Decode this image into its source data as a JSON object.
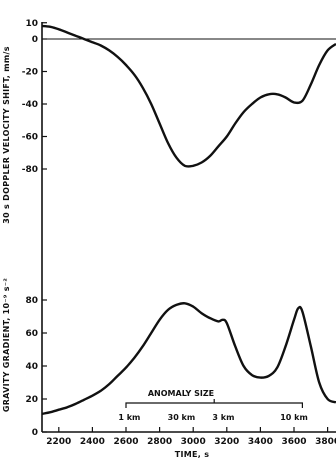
{
  "chart_data": [
    {
      "type": "line",
      "ylabel": "30 s DOPPLER VELOCITY SHIFT, mm/s",
      "ylim": [
        -100,
        10
      ],
      "xlim": [
        2100,
        3850
      ],
      "yticks": [
        10,
        0,
        -20,
        -40,
        -60,
        -80
      ],
      "zero_line": true,
      "grid": false,
      "series": [
        {
          "x": [
            2100,
            2150,
            2200,
            2250,
            2300,
            2350,
            2400,
            2450,
            2500,
            2550,
            2600,
            2650,
            2700,
            2750,
            2800,
            2850,
            2900,
            2950,
            3000,
            3050,
            3100,
            3150,
            3200,
            3250,
            3300,
            3350,
            3400,
            3450,
            3500,
            3550,
            3600,
            3650,
            3700,
            3750,
            3800,
            3850
          ],
          "y": [
            8,
            7.5,
            6,
            4,
            2,
            0,
            -2,
            -4,
            -7,
            -11,
            -16,
            -22,
            -30,
            -40,
            -52,
            -64,
            -73,
            -78,
            -78,
            -76,
            -72,
            -66,
            -60,
            -52,
            -45,
            -40,
            -36,
            -34,
            -34,
            -36,
            -39,
            -38,
            -28,
            -16,
            -7,
            -3
          ]
        }
      ]
    },
    {
      "type": "line",
      "ylabel": "GRAVITY GRADIENT, 10⁻⁹ s⁻²",
      "xlabel": "TIME, s",
      "ylim": [
        0,
        90
      ],
      "xlim": [
        2100,
        3850
      ],
      "yticks": [
        0,
        20,
        40,
        60,
        80
      ],
      "xticks": [
        2200,
        2400,
        2600,
        2800,
        3000,
        3200,
        3400,
        3600,
        3800
      ],
      "grid": false,
      "series": [
        {
          "x": [
            2100,
            2150,
            2200,
            2250,
            2300,
            2350,
            2400,
            2450,
            2500,
            2550,
            2600,
            2650,
            2700,
            2750,
            2800,
            2850,
            2900,
            2950,
            3000,
            3050,
            3100,
            3150,
            3175,
            3200,
            3250,
            3300,
            3350,
            3400,
            3450,
            3500,
            3550,
            3600,
            3625,
            3650,
            3700,
            3750,
            3800,
            3850
          ],
          "y": [
            11,
            12,
            13.5,
            15,
            17,
            19.5,
            22,
            25,
            29,
            34,
            39,
            45,
            52,
            60,
            68,
            74,
            77,
            78,
            76,
            72,
            69,
            67,
            68,
            66,
            52,
            40,
            34.5,
            33,
            34,
            39,
            52,
            68,
            75,
            73,
            52,
            30,
            20,
            18
          ]
        }
      ],
      "annotations": {
        "title": "ANOMALY SIZE",
        "labels": [
          {
            "text": "1 km",
            "x": 2620
          },
          {
            "text": "30 km",
            "x": 2930
          },
          {
            "text": "3 km",
            "x": 3180
          },
          {
            "text": "10 km",
            "x": 3600
          }
        ],
        "bracket_x": [
          2600,
          3650
        ]
      }
    }
  ]
}
